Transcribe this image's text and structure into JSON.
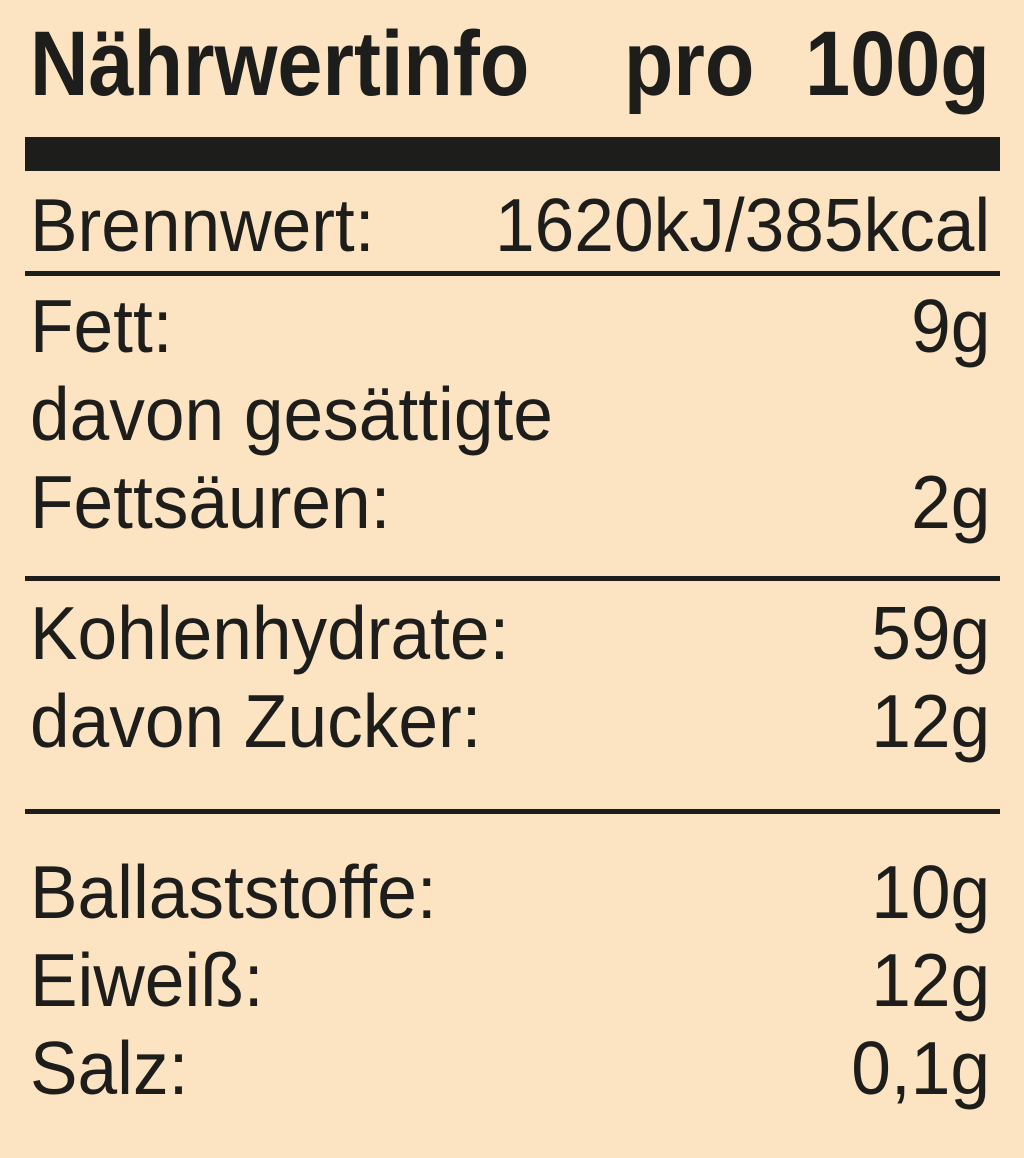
{
  "colors": {
    "background": "#fce4c2",
    "ink": "#1d1d1b"
  },
  "title": {
    "words": [
      "Nährwertinfo",
      "pro",
      "100g"
    ]
  },
  "sections": {
    "energy": {
      "rows": [
        {
          "label": "Brennwert:",
          "value": "1620kJ/385kcal"
        }
      ]
    },
    "fat": {
      "rows": [
        {
          "label": "Fett:",
          "value": "9g"
        },
        {
          "label": "davon gesättigte"
        },
        {
          "label": "Fettsäuren:",
          "value": "2g"
        }
      ]
    },
    "carbohydrates": {
      "rows": [
        {
          "label": "Kohlenhydrate:",
          "value": "59g"
        },
        {
          "label": "davon Zucker:",
          "value": "12g"
        }
      ]
    },
    "other": {
      "rows": [
        {
          "label": "Ballaststoffe:",
          "value": "10g"
        },
        {
          "label": "Eiweiß:",
          "value": "12g"
        },
        {
          "label": "Salz:",
          "value": "0,1g"
        }
      ]
    }
  }
}
